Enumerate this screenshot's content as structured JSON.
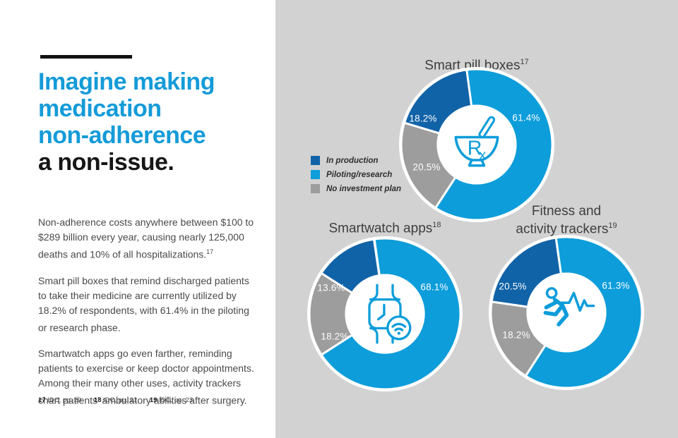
{
  "colors": {
    "piloting": "#0D9DDA",
    "production": "#1163A8",
    "no_plan": "#9D9D9D",
    "panel_gray": "#D2D2D2",
    "headline_blue": "#149BD8",
    "headline_black": "#161616"
  },
  "left": {
    "headline": {
      "blue_lines": [
        "Imagine making",
        "medication",
        "non-adherence"
      ],
      "black_line": "a non-issue."
    },
    "paragraphs": [
      {
        "text": "Non-adherence costs anywhere between $100 to $289 billion every year, causing nearly 125,000 deaths and 10% of all hospitalizations.",
        "sup": "17"
      },
      {
        "text": "Smart pill boxes that remind discharged patients to take their medicine are currently utilized by 18.2% of respondents, with 61.4% in the piloting or research phase.",
        "sup": ""
      },
      {
        "text": "Smartwatch apps go even farther, reminding patients to exercise or keep doctor appointments. Among their many other uses, activity trackers chart patients’ ambulatory abilities after surgery.",
        "sup": ""
      }
    ],
    "footnotes": [
      {
        "num": "17",
        "text": "IDC, pg. 20"
      },
      {
        "num": "18",
        "text": "IDC, pg. 21"
      },
      {
        "num": "19",
        "text": "IDC, pg. 23"
      }
    ]
  },
  "legend": {
    "items": [
      {
        "label": "In production",
        "key": "production"
      },
      {
        "label": "Piloting/research",
        "key": "piloting"
      },
      {
        "label": "No investment plan",
        "key": "no_plan"
      }
    ]
  },
  "chart_data": [
    {
      "type": "pie",
      "subtype": "donut",
      "title_lines": [
        "Smart pill boxes"
      ],
      "title_sup": "17",
      "icon": "mortar-pestle-rx",
      "start_angle_deg": -8,
      "legend_position": "left-middle",
      "segments": [
        {
          "label": "Piloting/research",
          "value": 61.4,
          "color_key": "piloting"
        },
        {
          "label": "No investment plan",
          "value": 20.5,
          "color_key": "no_plan"
        },
        {
          "label": "In production",
          "value": 18.2,
          "color_key": "production"
        }
      ]
    },
    {
      "type": "pie",
      "subtype": "donut",
      "title_lines": [
        "Smartwatch apps"
      ],
      "title_sup": "18",
      "icon": "smartwatch-wifi",
      "start_angle_deg": -8,
      "segments": [
        {
          "label": "Piloting/research",
          "value": 68.1,
          "color_key": "piloting"
        },
        {
          "label": "No investment plan",
          "value": 18.2,
          "color_key": "no_plan"
        },
        {
          "label": "In production",
          "value": 13.6,
          "color_key": "production"
        }
      ]
    },
    {
      "type": "pie",
      "subtype": "donut",
      "title_lines": [
        "Fitness and",
        "activity trackers"
      ],
      "title_sup": "19",
      "icon": "runner-pulse",
      "start_angle_deg": -8,
      "segments": [
        {
          "label": "Piloting/research",
          "value": 61.3,
          "color_key": "piloting"
        },
        {
          "label": "No investment plan",
          "value": 18.2,
          "color_key": "no_plan"
        },
        {
          "label": "In production",
          "value": 20.5,
          "color_key": "production"
        }
      ]
    }
  ]
}
